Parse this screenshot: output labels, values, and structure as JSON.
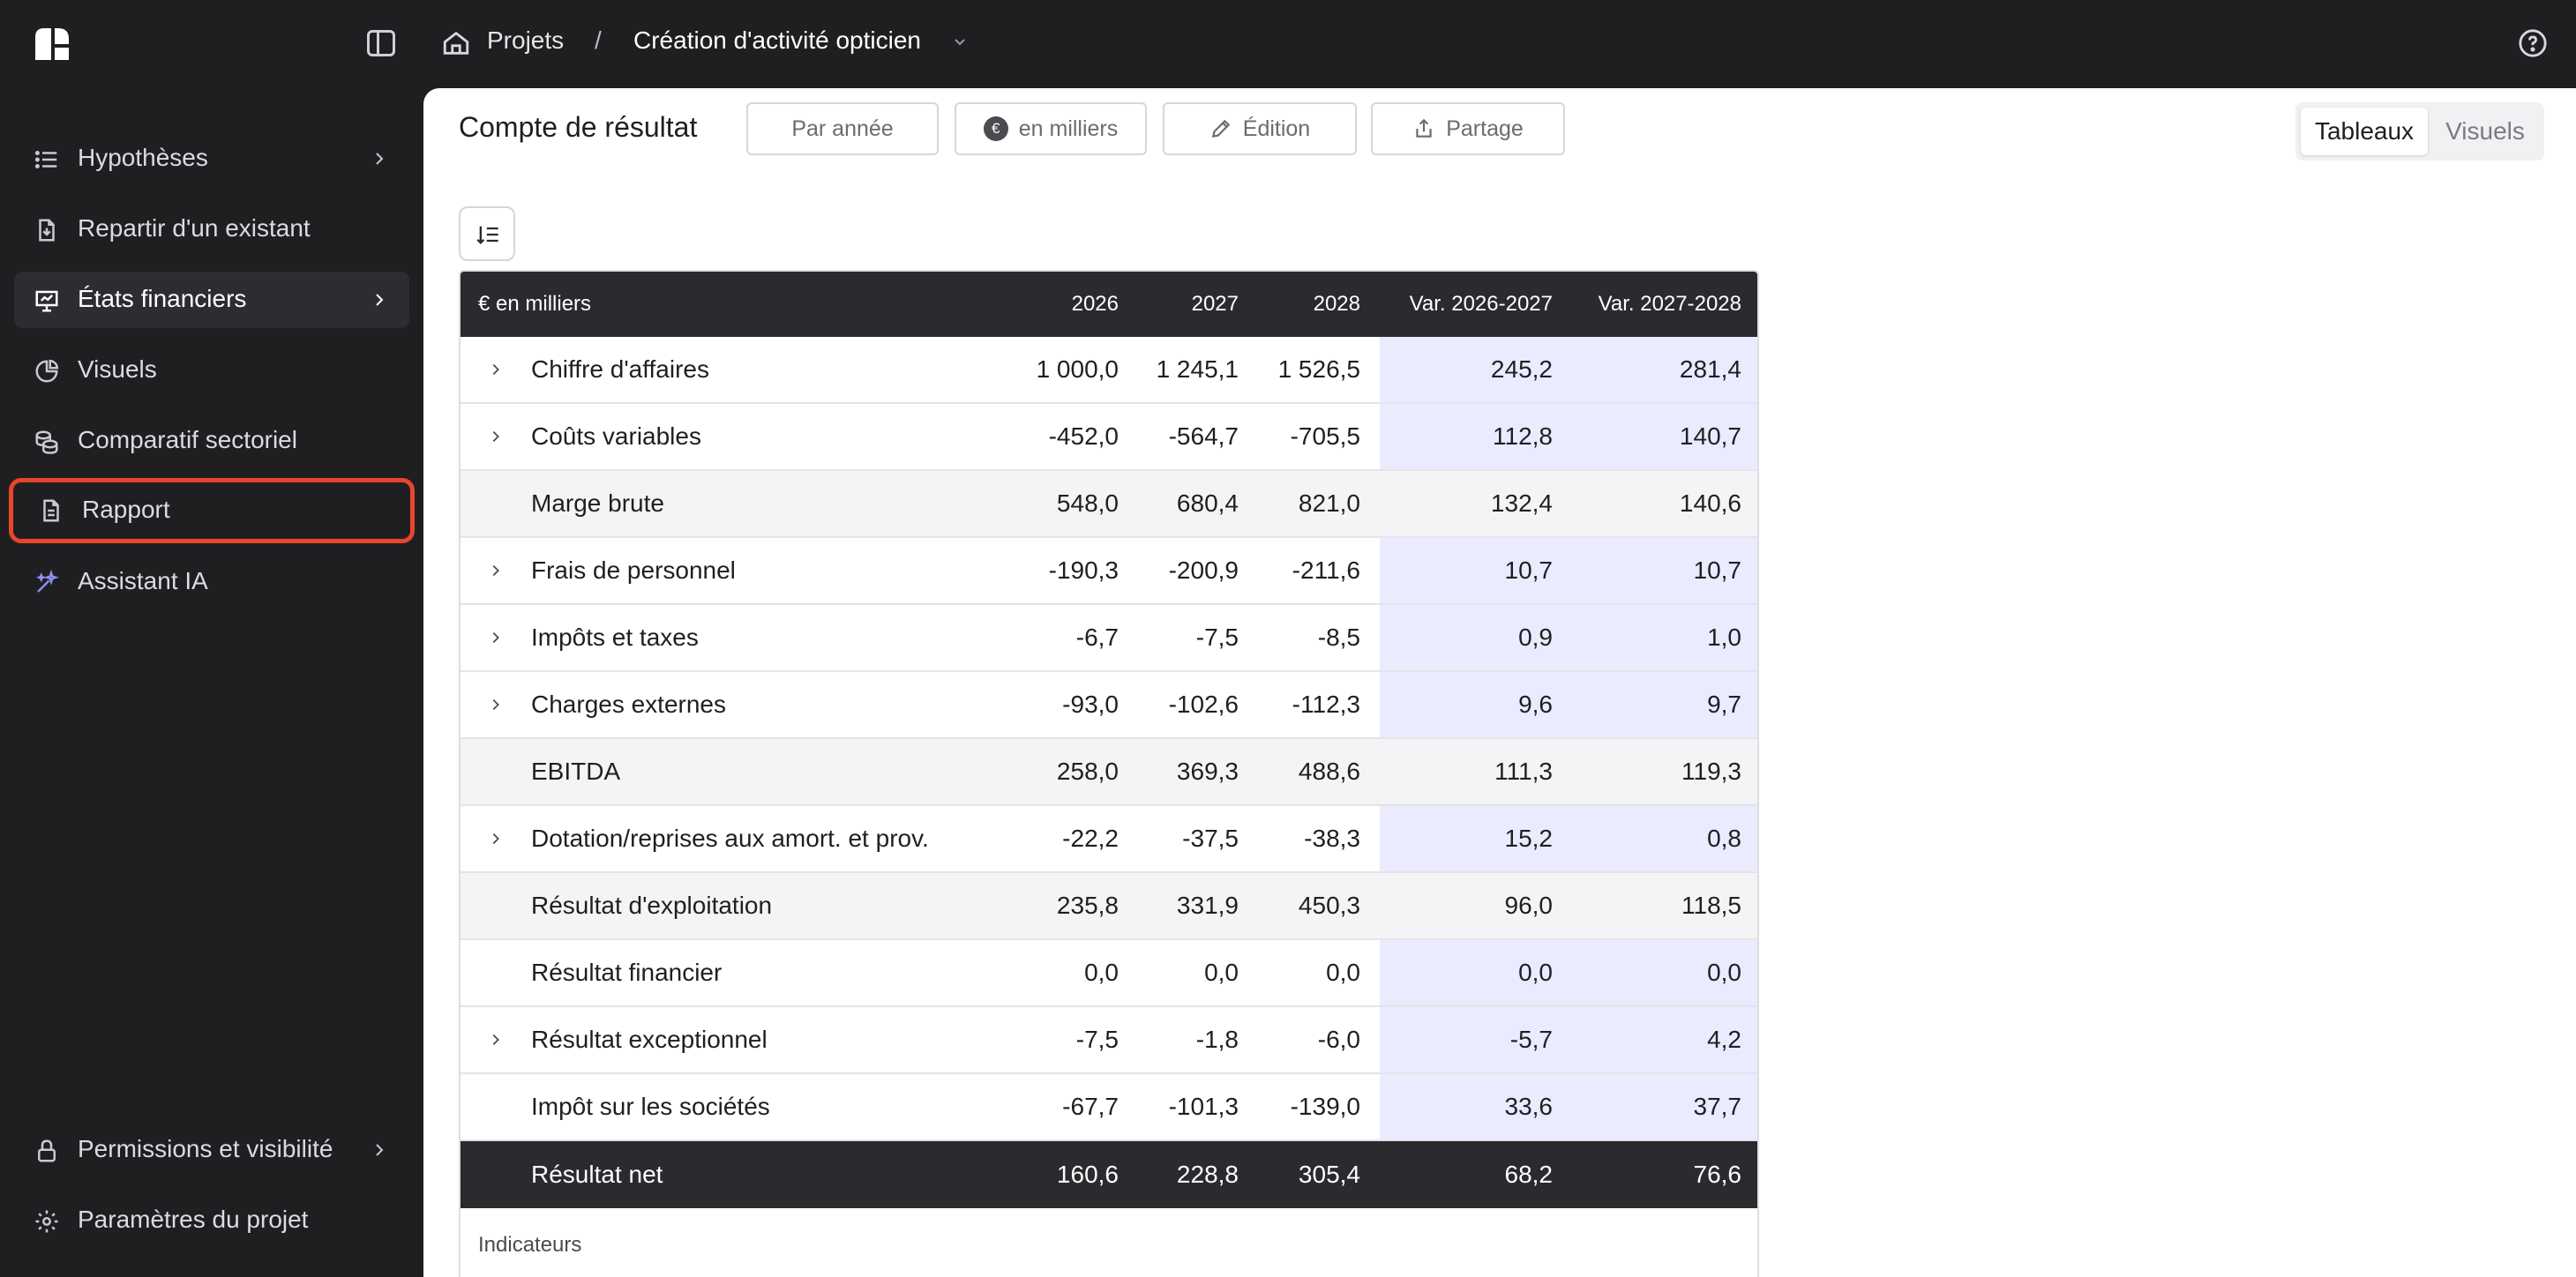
{
  "colors": {
    "dark": "#1f1f22",
    "highlight": "#e8452c",
    "var_bg": "#ebebff"
  },
  "breadcrumb": {
    "projects": "Projets",
    "separator": "/",
    "current": "Création d'activité opticien"
  },
  "sidebar": {
    "items": [
      {
        "label": "Hypothèses",
        "icon": "list-icon",
        "chevron": true
      },
      {
        "label": "Repartir d'un existant",
        "icon": "file-import-icon",
        "chevron": false
      },
      {
        "label": "États financiers",
        "icon": "presentation-chart-icon",
        "chevron": true,
        "active": true
      },
      {
        "label": "Visuels",
        "icon": "pie-chart-icon",
        "chevron": false
      },
      {
        "label": "Comparatif sectoriel",
        "icon": "coins-icon",
        "chevron": false
      },
      {
        "label": "Rapport",
        "icon": "document-icon",
        "chevron": false,
        "highlighted": true
      },
      {
        "label": "Assistant IA",
        "icon": "sparkles-icon",
        "chevron": false
      }
    ],
    "bottom": [
      {
        "label": "Permissions et visibilité",
        "icon": "lock-icon",
        "chevron": true
      },
      {
        "label": "Paramètres du projet",
        "icon": "gear-icon",
        "chevron": false
      }
    ]
  },
  "toolbar": {
    "title": "Compte de résultat",
    "period_button": "Par année",
    "unit_button": "en milliers",
    "unit_symbol": "€",
    "edit_button": "Édition",
    "share_button": "Partage",
    "view_tables": "Tableaux",
    "view_visuals": "Visuels"
  },
  "table": {
    "headers": [
      "€ en milliers",
      "2026",
      "2027",
      "2028",
      "Var. 2026-2027",
      "Var. 2027-2028"
    ],
    "rows": [
      {
        "label": "Chiffre d'affaires",
        "type": "std",
        "expand": true,
        "values": [
          "1 000,0",
          "1 245,1",
          "1 526,5",
          "245,2",
          "281,4"
        ]
      },
      {
        "label": "Coûts variables",
        "type": "std",
        "expand": true,
        "values": [
          "-452,0",
          "-564,7",
          "-705,5",
          "112,8",
          "140,7"
        ]
      },
      {
        "label": "Marge brute",
        "type": "sub",
        "expand": false,
        "values": [
          "548,0",
          "680,4",
          "821,0",
          "132,4",
          "140,6"
        ]
      },
      {
        "label": "Frais de personnel",
        "type": "std",
        "expand": true,
        "values": [
          "-190,3",
          "-200,9",
          "-211,6",
          "10,7",
          "10,7"
        ]
      },
      {
        "label": "Impôts et taxes",
        "type": "std",
        "expand": true,
        "values": [
          "-6,7",
          "-7,5",
          "-8,5",
          "0,9",
          "1,0"
        ]
      },
      {
        "label": "Charges externes",
        "type": "std",
        "expand": true,
        "values": [
          "-93,0",
          "-102,6",
          "-112,3",
          "9,6",
          "9,7"
        ]
      },
      {
        "label": "EBITDA",
        "type": "sub",
        "expand": false,
        "values": [
          "258,0",
          "369,3",
          "488,6",
          "111,3",
          "119,3"
        ]
      },
      {
        "label": "Dotation/reprises aux amort. et prov.",
        "type": "std",
        "expand": true,
        "values": [
          "-22,2",
          "-37,5",
          "-38,3",
          "15,2",
          "0,8"
        ]
      },
      {
        "label": "Résultat d'exploitation",
        "type": "sub",
        "expand": false,
        "values": [
          "235,8",
          "331,9",
          "450,3",
          "96,0",
          "118,5"
        ]
      },
      {
        "label": "Résultat financier",
        "type": "std",
        "expand": false,
        "values": [
          "0,0",
          "0,0",
          "0,0",
          "0,0",
          "0,0"
        ]
      },
      {
        "label": "Résultat exceptionnel",
        "type": "std",
        "expand": true,
        "values": [
          "-7,5",
          "-1,8",
          "-6,0",
          "-5,7",
          "4,2"
        ]
      },
      {
        "label": "Impôt sur les sociétés",
        "type": "std",
        "expand": false,
        "values": [
          "-67,7",
          "-101,3",
          "-139,0",
          "33,6",
          "37,7"
        ]
      },
      {
        "label": "Résultat net",
        "type": "net",
        "expand": false,
        "values": [
          "160,6",
          "228,8",
          "305,4",
          "68,2",
          "76,6"
        ]
      }
    ],
    "indicators_label": "Indicateurs"
  }
}
